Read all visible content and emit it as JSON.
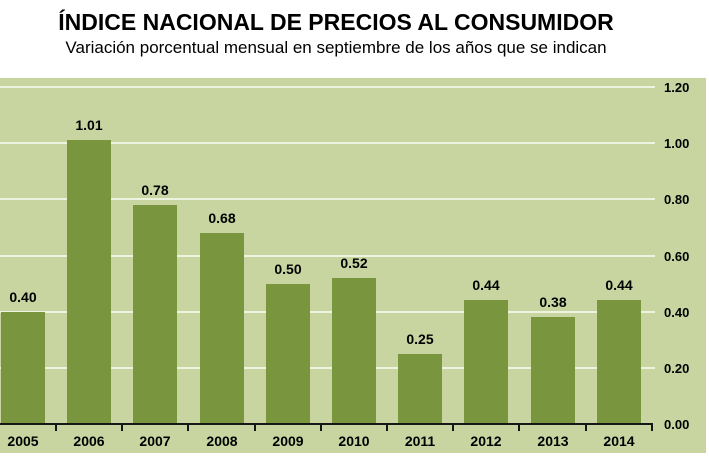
{
  "header": {
    "title": "ÍNDICE NACIONAL DE PRECIOS AL CONSUMIDOR",
    "subtitle": "Variación porcentual mensual en septiembre de los años que se indican"
  },
  "colors": {
    "bar": "#79953e",
    "plot_background": "#c8d5a1",
    "gridline": "#edf3de",
    "axis": "#161616",
    "text": "#000000",
    "page_background": "#ffffff"
  },
  "chart_data": {
    "type": "bar",
    "title": "ÍNDICE NACIONAL DE PRECIOS AL CONSUMIDOR",
    "subtitle": "Variación porcentual mensual en septiembre de los años que se indican",
    "categories": [
      "2005",
      "2006",
      "2007",
      "2008",
      "2009",
      "2010",
      "2011",
      "2012",
      "2013",
      "2014"
    ],
    "values": [
      0.4,
      1.01,
      0.78,
      0.68,
      0.5,
      0.52,
      0.25,
      0.44,
      0.38,
      0.44
    ],
    "value_labels": [
      "0.40",
      "1.01",
      "0.78",
      "0.68",
      "0.50",
      "0.52",
      "0.25",
      "0.44",
      "0.38",
      "0.44"
    ],
    "xlabel": "",
    "ylabel": "",
    "ylim": [
      0.0,
      1.2
    ],
    "ytick_step": 0.2,
    "ytick_labels": [
      "0.00",
      "0.20",
      "0.40",
      "0.60",
      "0.80",
      "1.00",
      "1.20"
    ],
    "ytick_side": "right",
    "grid": true,
    "legend_position": "none"
  }
}
